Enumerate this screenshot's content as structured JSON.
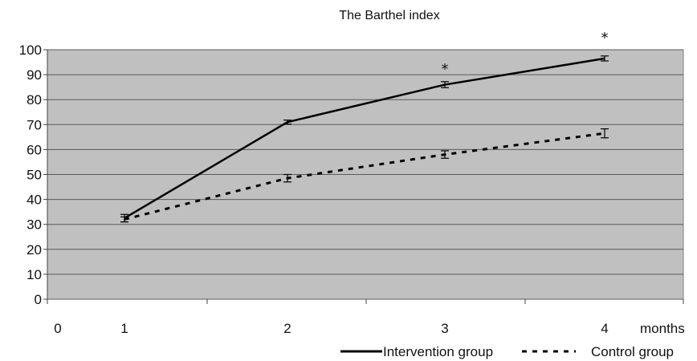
{
  "chart_data": {
    "type": "line",
    "title": "The Barthel index",
    "xlabel": "months",
    "ylabel": "",
    "x_ticks": [
      "0",
      "1",
      "2",
      "3",
      "4"
    ],
    "x": [
      1,
      2,
      3,
      4
    ],
    "ylim": [
      0,
      100
    ],
    "y_ticks": [
      0,
      10,
      20,
      30,
      40,
      50,
      60,
      70,
      80,
      90,
      100
    ],
    "grid": true,
    "plot_background": "#c0c0c0",
    "legend_position": "bottom-right",
    "series": [
      {
        "name": "Intervention group",
        "values": [
          32.5,
          71,
          86,
          96.5
        ],
        "error": [
          1.5,
          0.8,
          1.2,
          1.0
        ],
        "line_style": "solid",
        "color": "#000000"
      },
      {
        "name": "Control group",
        "values": [
          32,
          48.5,
          58,
          66.5
        ],
        "error": [
          1.0,
          1.5,
          1.5,
          1.8
        ],
        "line_style": "dashed",
        "color": "#000000"
      }
    ],
    "annotations": [
      {
        "text": "*",
        "x": 3,
        "y": 86
      },
      {
        "text": "*",
        "x": 4,
        "y": 96.5
      }
    ]
  }
}
